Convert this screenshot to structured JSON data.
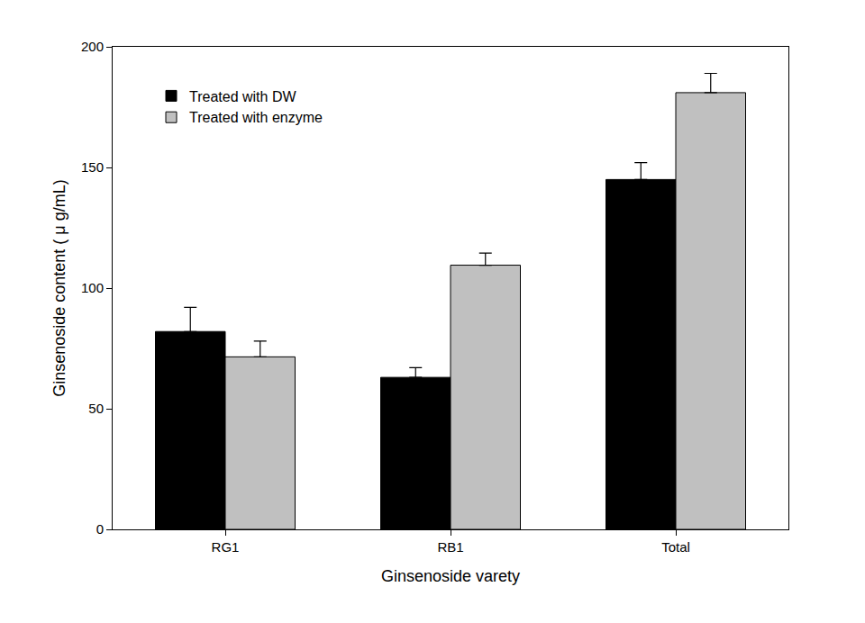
{
  "chart_data": {
    "type": "bar",
    "x_label": "Ginsenoside varety",
    "y_label": "Ginsenoside content ( μ g/mL)",
    "categories": [
      "RG1",
      "RB1",
      "Total"
    ],
    "series": [
      {
        "name": "Treated with DW",
        "color": "#000000",
        "values": [
          82,
          63,
          145
        ],
        "errors": [
          10,
          4,
          7
        ]
      },
      {
        "name": "Treated with enzyme",
        "color": "#c0c0c0",
        "values": [
          71.5,
          109.5,
          181
        ],
        "errors": [
          6.5,
          5,
          8
        ]
      }
    ],
    "ylim": [
      0,
      200
    ],
    "yticks": [
      0,
      50,
      100,
      150,
      200
    ],
    "grid": false,
    "legend": "upper left"
  }
}
